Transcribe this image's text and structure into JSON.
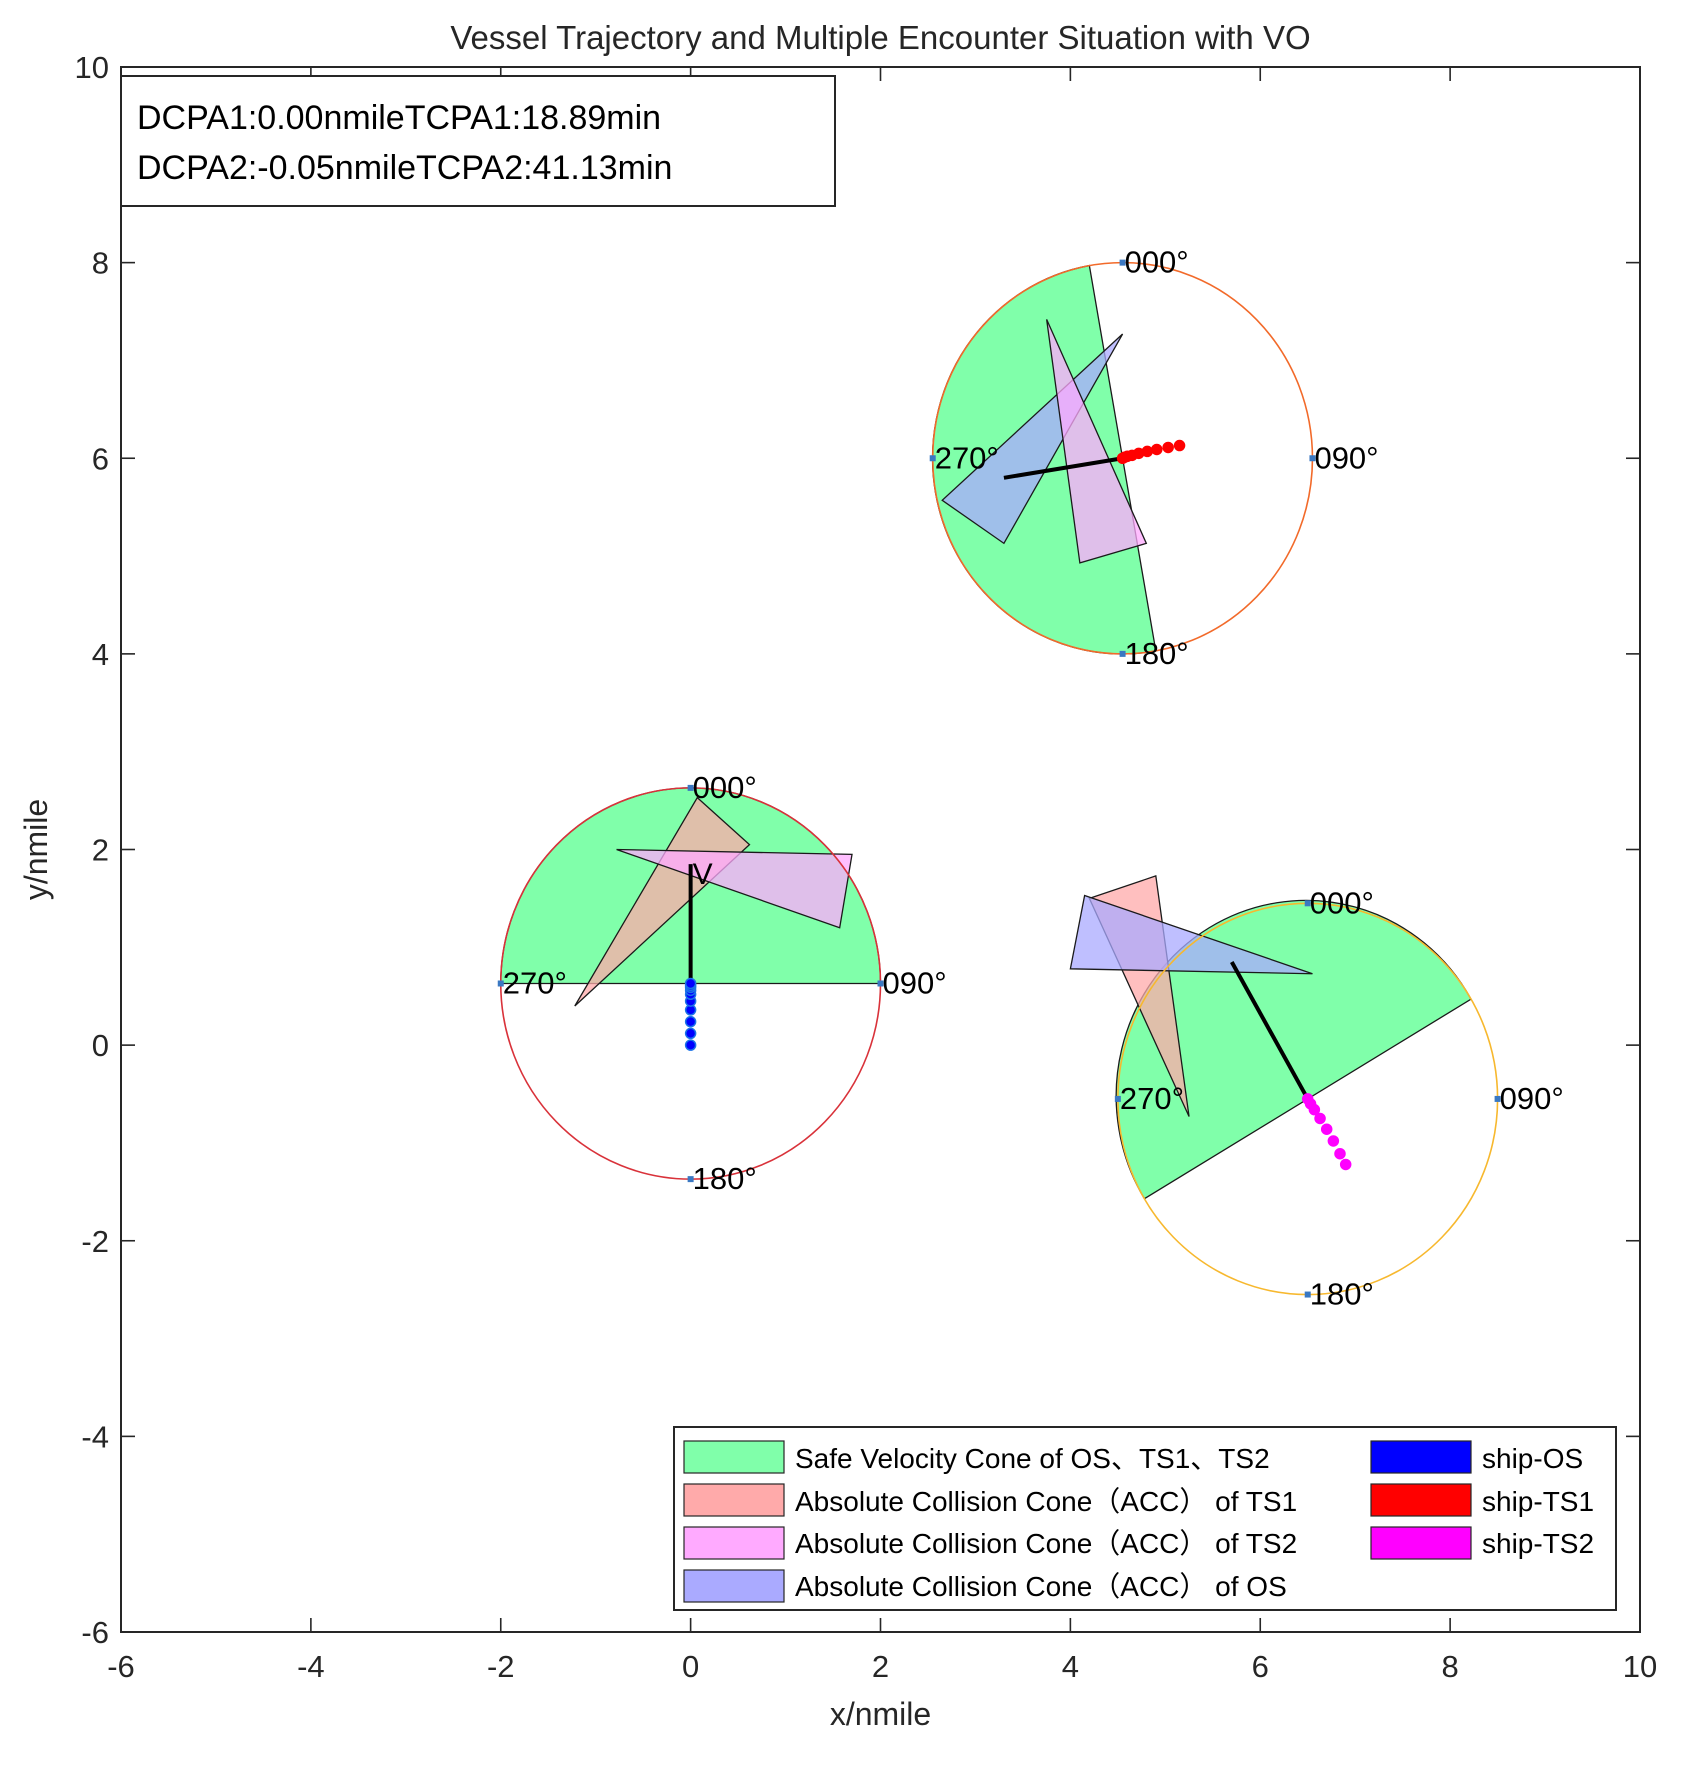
{
  "chart_data": {
    "type": "scatter",
    "title": "Vessel Trajectory and Multiple Encounter Situation with VO",
    "xlabel": "x/nmile",
    "ylabel": "y/nmile",
    "xlim": [
      -6,
      10
    ],
    "ylim": [
      -6,
      10
    ],
    "xticks": [
      -6,
      -4,
      -2,
      0,
      2,
      4,
      6,
      8,
      10
    ],
    "yticks": [
      -6,
      -4,
      -2,
      0,
      2,
      4,
      6,
      8,
      10
    ],
    "xtick_labels": [
      "-6",
      "-4",
      "-2",
      "0",
      "2",
      "4",
      "6",
      "8",
      "10"
    ],
    "ytick_labels": [
      "-6",
      "-4",
      "-2",
      "0",
      "2",
      "4",
      "6",
      "8",
      "10"
    ],
    "grid": false,
    "info_box": {
      "line1": "DCPA1:0.00nmileTCPA1:18.89min",
      "line2": "DCPA2:-0.05nmileTCPA2:41.13min"
    },
    "colors": {
      "safe": "#80ffaa",
      "acc_ts1": "#ffaaaa",
      "acc_ts2": "#ffaaff",
      "acc_os": "#aaaaff",
      "ship_os": "#0000ff",
      "ship_ts1": "#ff0000",
      "ship_ts2": "#ff00ff"
    },
    "legend": {
      "position": "bottom-right",
      "entries": [
        {
          "label": "Safe Velocity Cone of OS、TS1、TS2",
          "color": "#80ffaa"
        },
        {
          "label": "Absolute Collision Cone（ACC） of TS1",
          "color": "#ffaaaa"
        },
        {
          "label": "Absolute Collision Cone（ACC） of TS2",
          "color": "#ffaaff"
        },
        {
          "label": "Absolute Collision Cone（ACC） of OS",
          "color": "#aaaaff"
        },
        {
          "label": "ship-OS",
          "color": "#0000ff"
        },
        {
          "label": "ship-TS1",
          "color": "#ff0000"
        },
        {
          "label": "ship-TS2",
          "color": "#ff00ff"
        }
      ]
    },
    "circles": [
      {
        "name": "os",
        "center": [
          0,
          0.63
        ],
        "radius": 2.0,
        "ring_color": "#d9323a",
        "compass": [
          "000°",
          "090°",
          "180°",
          "270°"
        ],
        "safe_region": {
          "type": "half-disc-upper"
        },
        "cones": [
          {
            "series": "acc_ts1",
            "points": [
              [
                0.07,
                2.53
              ],
              [
                0.62,
                2.05
              ],
              [
                -1.22,
                0.4
              ]
            ]
          },
          {
            "series": "acc_ts2",
            "points": [
              [
                -0.78,
                2.0
              ],
              [
                1.7,
                1.95
              ],
              [
                1.57,
                1.2
              ]
            ]
          }
        ],
        "velocity": {
          "from": [
            0,
            0.63
          ],
          "to": [
            0,
            1.85
          ],
          "label": "V"
        },
        "track": {
          "series": "ship_os",
          "x": [
            0,
            0,
            0,
            0,
            0,
            0,
            0,
            0,
            0,
            0
          ],
          "y": [
            0,
            0.12,
            0.24,
            0.36,
            0.45,
            0.52,
            0.56,
            0.59,
            0.61,
            0.63
          ]
        }
      },
      {
        "name": "ts1",
        "center": [
          4.55,
          6.0
        ],
        "radius": 2.0,
        "ring_color": "#f26a2a",
        "compass": [
          "000°",
          "090°",
          "180°",
          "270°"
        ],
        "safe_region": {
          "type": "chord-left",
          "p1": [
            4.2,
            7.97
          ],
          "p2": [
            4.9,
            4.03
          ]
        },
        "cones": [
          {
            "series": "acc_os",
            "points": [
              [
                4.55,
                7.27
              ],
              [
                2.65,
                5.57
              ],
              [
                3.3,
                5.13
              ]
            ]
          },
          {
            "series": "acc_ts2",
            "points": [
              [
                3.75,
                7.42
              ],
              [
                4.1,
                4.93
              ],
              [
                4.8,
                5.13
              ]
            ]
          }
        ],
        "velocity": {
          "from": [
            4.55,
            6.0
          ],
          "to": [
            3.3,
            5.8
          ]
        },
        "track": {
          "series": "ship_ts1",
          "x": [
            5.15,
            5.03,
            4.91,
            4.81,
            4.72,
            4.65,
            4.6,
            4.57,
            4.55
          ],
          "y": [
            6.13,
            6.11,
            6.09,
            6.07,
            6.05,
            6.03,
            6.02,
            6.01,
            6.0
          ]
        }
      },
      {
        "name": "ts2",
        "center": [
          6.5,
          -0.55
        ],
        "radius": 2.0,
        "ring_color": "#f7b82e",
        "compass": [
          "000°",
          "090°",
          "180°",
          "270°"
        ],
        "safe_region": {
          "type": "chord-upper-left",
          "p1": [
            8.22,
            0.47
          ],
          "p2": [
            4.78,
            -1.57
          ]
        },
        "cones": [
          {
            "series": "acc_ts1",
            "points": [
              [
                4.2,
                1.5
              ],
              [
                4.9,
                1.73
              ],
              [
                5.25,
                -0.73
              ]
            ]
          },
          {
            "series": "acc_os",
            "points": [
              [
                4.15,
                1.53
              ],
              [
                6.55,
                0.73
              ],
              [
                4.0,
                0.78
              ]
            ]
          }
        ],
        "velocity": {
          "from": [
            6.5,
            -0.55
          ],
          "to": [
            5.7,
            0.85
          ]
        },
        "track": {
          "series": "ship_ts2",
          "x": [
            6.9,
            6.84,
            6.77,
            6.7,
            6.63,
            6.57,
            6.53,
            6.5
          ],
          "y": [
            -1.22,
            -1.11,
            -0.98,
            -0.86,
            -0.75,
            -0.66,
            -0.6,
            -0.55
          ]
        }
      }
    ]
  }
}
